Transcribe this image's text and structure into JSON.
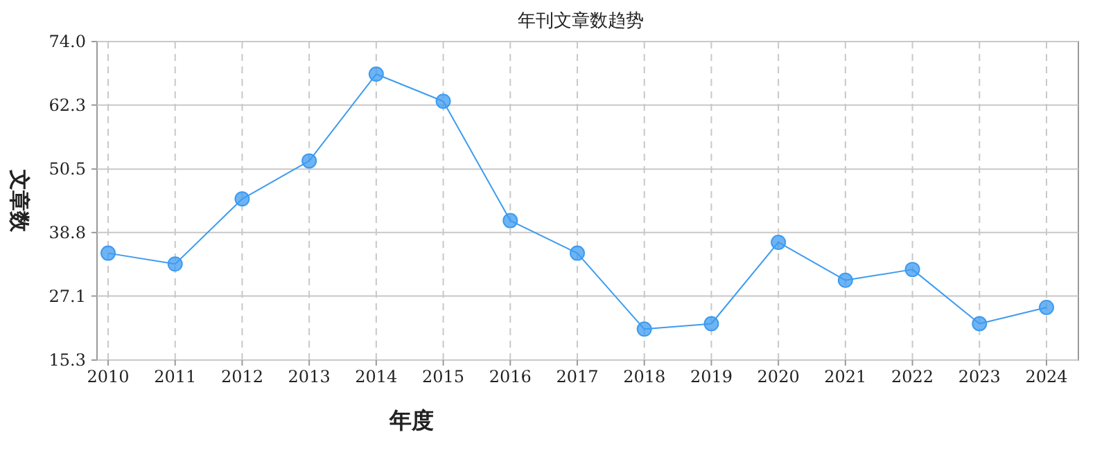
{
  "chart_data": {
    "type": "line",
    "title": "年刊文章数趋势",
    "xlabel": "年度",
    "ylabel": "文章数",
    "categories": [
      "2010",
      "2011",
      "2012",
      "2013",
      "2014",
      "2015",
      "2016",
      "2017",
      "2018",
      "2019",
      "2020",
      "2021",
      "2022",
      "2023",
      "2024"
    ],
    "series": [
      {
        "color": "#3d9bf0",
        "values": [
          35,
          33,
          45,
          52,
          68,
          63,
          41,
          35,
          21,
          22,
          37,
          30,
          32,
          22,
          25
        ]
      }
    ],
    "ylim": [
      15.3,
      74
    ],
    "yticks": [
      {
        "value": 15.3,
        "label": "15.3"
      },
      27.1,
      38.8,
      50.5,
      62.3,
      {
        "value": 74,
        "label": "74.0"
      }
    ],
    "grid": true,
    "marker": "circle",
    "line_style": "solid"
  }
}
